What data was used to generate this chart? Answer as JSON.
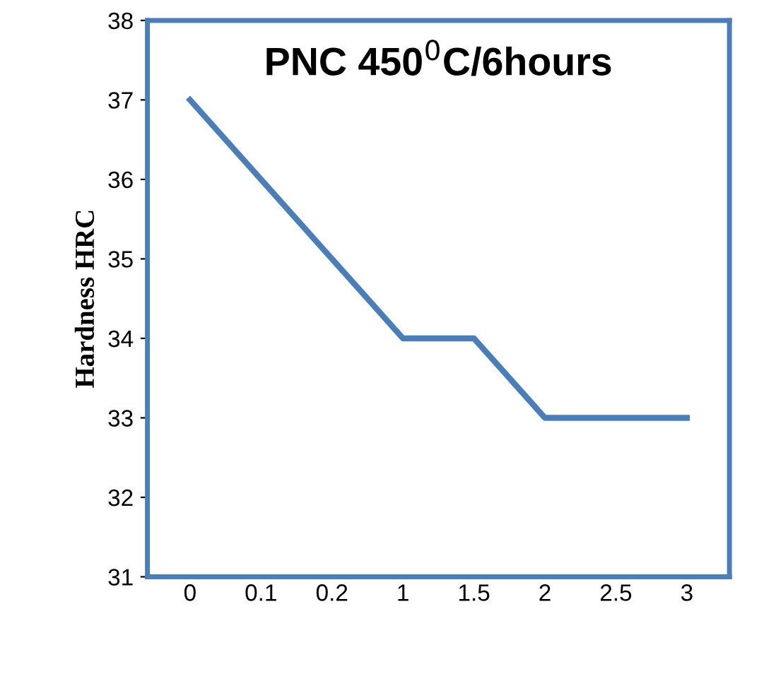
{
  "chart_data": {
    "type": "line",
    "title": "PNC 450$^{0}$C/6hours",
    "ylabel": "Hardness HRC",
    "categories": [
      "0",
      "0.1",
      "0.2",
      "1",
      "1.5",
      "2",
      "2.5",
      "3"
    ],
    "series": [
      {
        "color": "#4a7ebb",
        "values": [
          37,
          36,
          35,
          34,
          34,
          33,
          33,
          33
        ]
      }
    ],
    "ylim": [
      31,
      38
    ],
    "yticks": [
      31,
      32,
      33,
      34,
      35,
      36,
      37,
      38
    ],
    "grid": false,
    "legend": false,
    "marker": "none",
    "line_style": "solid"
  }
}
